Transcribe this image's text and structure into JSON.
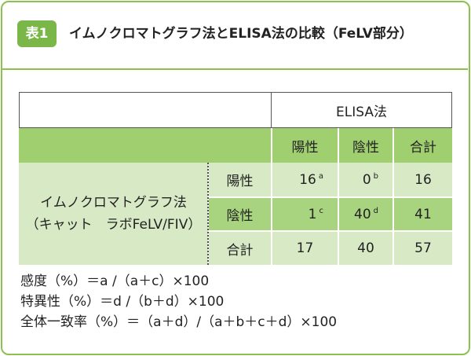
{
  "title": {
    "badge": "表1",
    "text": "イムノクロマトグラフ法とELISA法の比較（FeLV部分）"
  },
  "table": {
    "group_header": "ELISA法",
    "columns": [
      "陽性",
      "陰性",
      "合計"
    ],
    "row_group_label": [
      "イムノクロマトグラフ法",
      "（キャット　ラボFeLV/FIV）"
    ],
    "rows": [
      {
        "label": "陽性",
        "cells": [
          {
            "value": "16",
            "note": "a"
          },
          {
            "value": "0",
            "note": "b"
          },
          {
            "value": "16"
          }
        ]
      },
      {
        "label": "陰性",
        "cells": [
          {
            "value": "1",
            "note": "c"
          },
          {
            "value": "40",
            "note": "d"
          },
          {
            "value": "41"
          }
        ]
      },
      {
        "label": "合計",
        "cells": [
          {
            "value": "17"
          },
          {
            "value": "40"
          },
          {
            "value": "57"
          }
        ]
      }
    ]
  },
  "formulas": [
    "感度（%）＝a /（a＋c）×100",
    "特異性（%）＝d /（b＋d）×100",
    "全体一致率（%）＝（a＋d）/（a＋b＋c＋d）×100"
  ]
}
